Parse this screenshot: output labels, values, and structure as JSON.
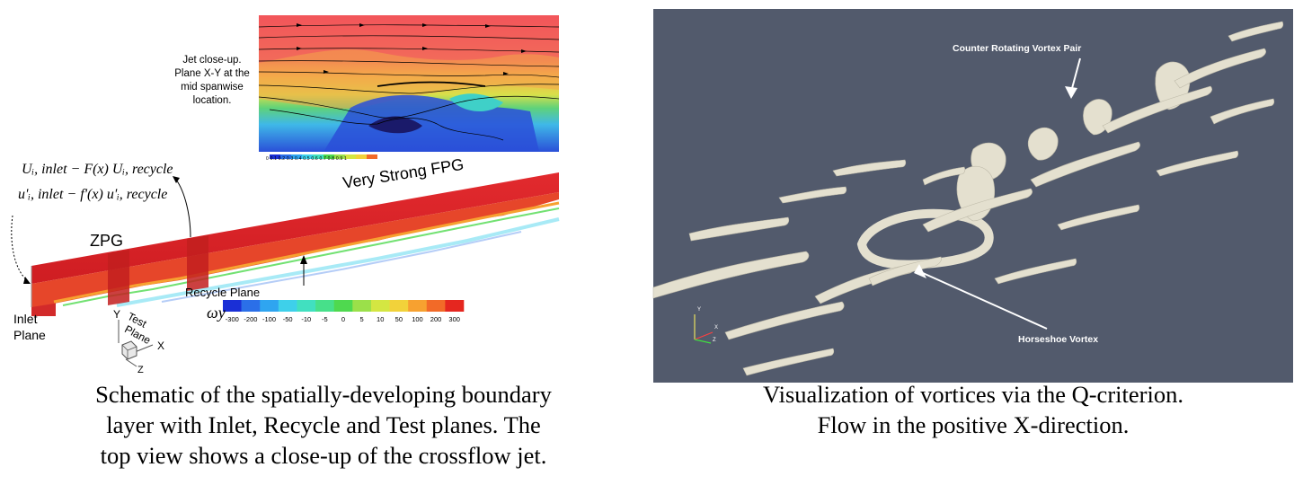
{
  "left_panel": {
    "jet_note": [
      "Jet close-up.",
      "Plane X-Y at the",
      "mid spanwise",
      "location."
    ],
    "formula_line1": "Uᵢ, inlet − F(x) Uᵢ, recycle",
    "formula_line2": "u'ᵢ, inlet − f'(x) u'ᵢ, recycle",
    "label_zpg": "ZPG",
    "label_fpg": "Very Strong FPG",
    "label_recycle": "Recycle Plane",
    "label_inlet": [
      "Inlet",
      "Plane"
    ],
    "label_test": [
      "Test",
      "Plane"
    ],
    "axis_y": "Y",
    "axis_x": "X",
    "axis_z": "Z",
    "colorbar_symbol": "ωy",
    "colorbar_ticks": [
      "-300",
      "-200",
      "-100",
      "-50",
      "-10",
      "-5",
      "0",
      "5",
      "10",
      "50",
      "100",
      "200",
      "300"
    ],
    "colorbar_colors": [
      "#1a2fd6",
      "#2b6fe8",
      "#2fa5f0",
      "#3ed0ea",
      "#41e0c0",
      "#47e08a",
      "#4fd94f",
      "#9be04a",
      "#d4e642",
      "#f2d23a",
      "#f7a130",
      "#f26a28",
      "#e5261f"
    ],
    "closeup_scale_ticks": [
      "0",
      "0.1",
      "0.2",
      "0.3",
      "0.4",
      "0.5",
      "0.6",
      "0.7",
      "0.8",
      "0.9",
      "1"
    ]
  },
  "right_panel": {
    "annot_top": "Counter Rotating Vortex Pair",
    "annot_bottom": "Horseshoe Vortex",
    "axis_y": "Y",
    "axis_x": "X",
    "axis_z": "Z",
    "background": "#525a6c"
  },
  "captions": {
    "left": [
      "Schematic of the spatially-developing boundary",
      "layer with Inlet, Recycle and Test planes. The",
      "top view shows a close-up of the crossflow jet."
    ],
    "right": [
      "Visualization of vortices via the Q-criterion.",
      "Flow in the positive X-direction."
    ]
  }
}
